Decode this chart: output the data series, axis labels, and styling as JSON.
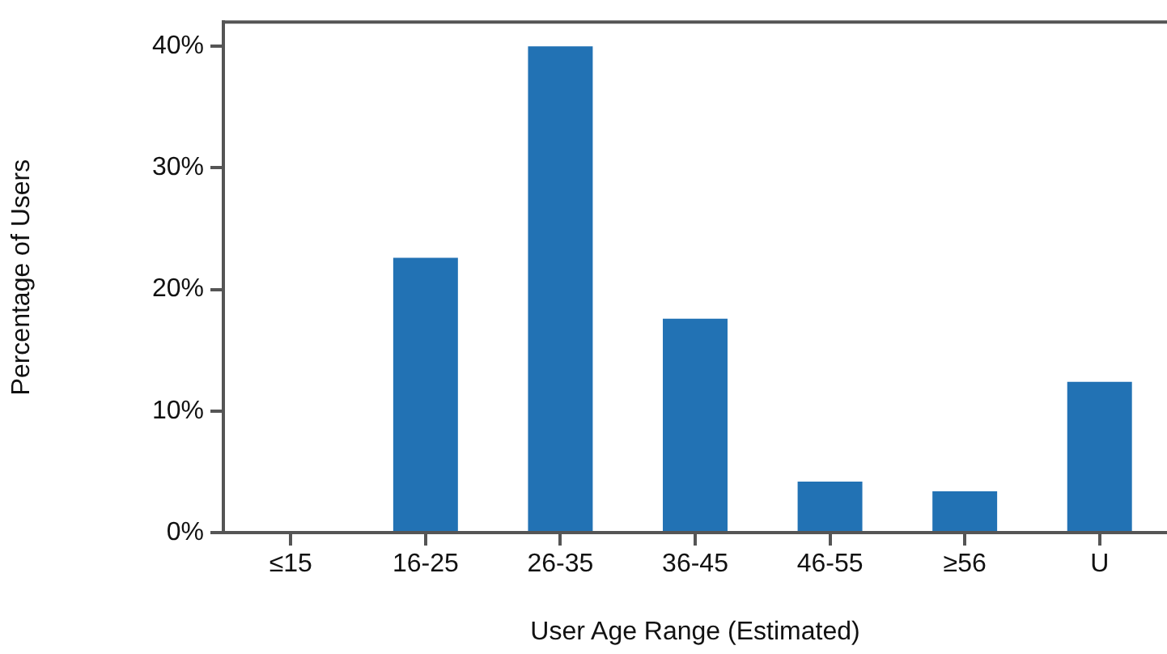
{
  "chart_data": {
    "type": "bar",
    "xlabel": "User Age Range (Estimated)",
    "ylabel": "Percentage of Users",
    "categories": [
      "≤15",
      "16-25",
      "26-35",
      "36-45",
      "46-55",
      "≥56",
      "U"
    ],
    "values": [
      0,
      22.6,
      40,
      17.6,
      4.2,
      3.4,
      12.4
    ],
    "color": "#2272b4",
    "ylim": [
      0,
      42
    ],
    "yticks": [
      {
        "value": 0,
        "label": "0%"
      },
      {
        "value": 10,
        "label": "10%"
      },
      {
        "value": 20,
        "label": "20%"
      },
      {
        "value": 30,
        "label": "30%"
      },
      {
        "value": 40,
        "label": "40%"
      }
    ],
    "grid": false
  }
}
